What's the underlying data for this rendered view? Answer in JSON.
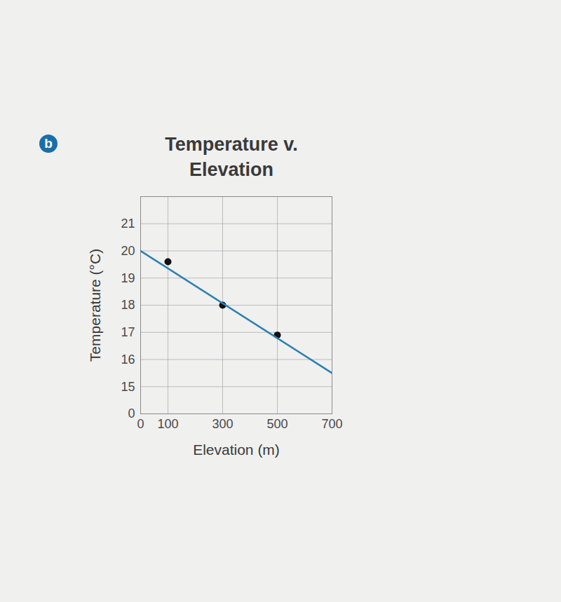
{
  "chart_data": {
    "type": "scatter",
    "panel": "b",
    "title": "Temperature v. Elevation",
    "x_label": "Elevation (m)",
    "y_label": "Temperature (°C)",
    "xlim": [
      0,
      700
    ],
    "xticks": [
      0,
      100,
      300,
      500,
      700
    ],
    "ylim": [
      0,
      22
    ],
    "yticks": [
      0,
      15,
      16,
      17,
      18,
      19,
      20,
      21
    ],
    "grid": true,
    "series": [
      {
        "type": "scatter",
        "x": [
          100,
          300,
          500
        ],
        "values": [
          19.6,
          18,
          16.9
        ],
        "color": "#111111",
        "marker": "circle"
      },
      {
        "type": "line",
        "x": [
          0,
          700
        ],
        "values": [
          20,
          15.5
        ],
        "color": "#2b7fb0",
        "line_style": "solid"
      }
    ]
  }
}
